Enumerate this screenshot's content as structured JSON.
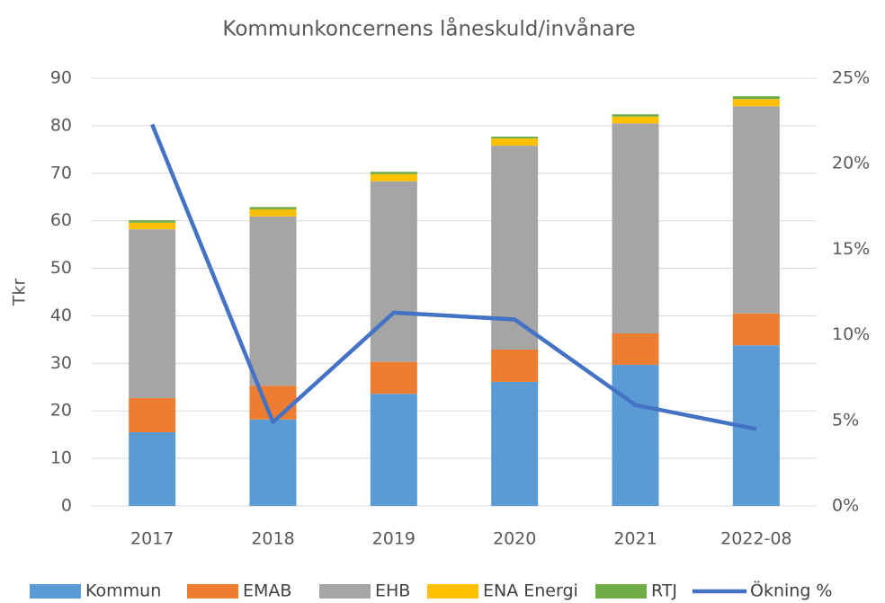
{
  "chart_data": {
    "type": "bar",
    "stacked": true,
    "title": "Kommunkoncernens låneskuld/invånare",
    "y_label": "Tkr",
    "categories": [
      "2017",
      "2018",
      "2019",
      "2020",
      "2021",
      "2022-08"
    ],
    "series": [
      {
        "name": "Kommun",
        "color": "#5b9bd5",
        "values": [
          15.5,
          18.2,
          23.6,
          26.1,
          29.7,
          33.8
        ]
      },
      {
        "name": "EMAB",
        "color": "#ed7d31",
        "values": [
          7.2,
          7.1,
          6.7,
          6.8,
          6.6,
          6.7
        ]
      },
      {
        "name": "EHB",
        "color": "#a5a5a5",
        "values": [
          35.5,
          35.6,
          38.0,
          42.9,
          44.2,
          43.6
        ]
      },
      {
        "name": "ENA Energi",
        "color": "#ffc000",
        "values": [
          1.4,
          1.5,
          1.5,
          1.5,
          1.4,
          1.5
        ]
      },
      {
        "name": "RTJ",
        "color": "#70ad47",
        "values": [
          0.5,
          0.5,
          0.5,
          0.4,
          0.5,
          0.6
        ]
      },
      {
        "name": "Ökning %",
        "color": "#4472c4",
        "type": "line",
        "axis": "y2",
        "values": [
          22.3,
          4.9,
          11.3,
          10.9,
          5.9,
          4.5
        ]
      }
    ],
    "ylim": [
      0,
      90
    ],
    "yticks": [
      0,
      10,
      20,
      30,
      40,
      50,
      60,
      70,
      80,
      90
    ],
    "y2lim": [
      0,
      25
    ],
    "y2ticks": [
      {
        "value": 0,
        "label": "0%"
      },
      {
        "value": 5,
        "label": "5%"
      },
      {
        "value": 10,
        "label": "10%"
      },
      {
        "value": 15,
        "label": "15%"
      },
      {
        "value": 20,
        "label": "20%"
      },
      {
        "value": 25,
        "label": "25%"
      }
    ],
    "grid": true,
    "legend": "bottom"
  }
}
